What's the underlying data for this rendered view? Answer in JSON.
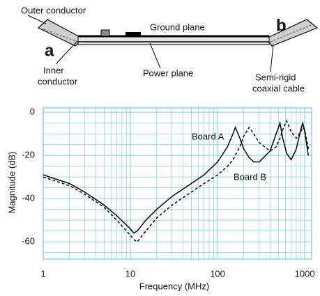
{
  "diagram": {
    "outer_conductor": "Outer conductor",
    "ground_plane": "Ground plane",
    "port_a": "a",
    "port_b": "b",
    "inner_conductor": [
      "Inner",
      "conductor"
    ],
    "power_plane": "Power plane",
    "cable": [
      "Semi-rigid",
      "coaxial cable"
    ]
  },
  "chart_data": {
    "type": "line",
    "xlabel": "Frequency (MHz)",
    "ylabel": "Magnitude (dB)",
    "xscale": "log",
    "xlim": [
      1,
      1200
    ],
    "ylim": [
      -68,
      2
    ],
    "xticks": [
      1,
      10,
      100,
      1000
    ],
    "yticks": [
      -60,
      -40,
      -20,
      0
    ],
    "xminorticks": [
      2,
      3,
      4,
      5,
      6,
      7,
      8,
      9,
      20,
      30,
      40,
      50,
      60,
      70,
      80,
      90,
      200,
      300,
      400,
      500,
      600,
      700,
      800,
      900
    ],
    "yminorticks": [
      -65,
      -55,
      -50,
      -45,
      -35,
      -30,
      -25,
      -15,
      -10,
      -5
    ],
    "grid": true,
    "grid_color": "#8fd3ea",
    "x": [
      1,
      2,
      3,
      5,
      7,
      10,
      11,
      12,
      15,
      20,
      30,
      50,
      70,
      100,
      130,
      150,
      160,
      180,
      200,
      230,
      260,
      300,
      400,
      470,
      520,
      560,
      620,
      700,
      800,
      900,
      950,
      1000,
      1100
    ],
    "series": [
      {
        "name": "Board A",
        "color": "#000000",
        "linestyle": "solid",
        "values": [
          -29,
          -33,
          -37,
          -43,
          -48,
          -54,
          -56,
          -55,
          -50,
          -45,
          -39,
          -33,
          -29,
          -23,
          -16,
          -10,
          -7,
          -12,
          -17,
          -21,
          -23,
          -23,
          -18,
          -10,
          -5,
          -12,
          -19,
          -22,
          -17,
          -8,
          -5,
          -9,
          -20
        ]
      },
      {
        "name": "Board B",
        "color": "#000000",
        "linestyle": "dashed",
        "values": [
          -30,
          -34,
          -38,
          -44,
          -50,
          -57,
          -59,
          -60,
          -55,
          -49,
          -43,
          -37,
          -33,
          -29,
          -25,
          -22,
          -20,
          -16,
          -11,
          -7,
          -10,
          -14,
          -18,
          -16,
          -12,
          -8,
          -4,
          -9,
          -12,
          -9,
          -7,
          -8,
          -17
        ]
      }
    ]
  }
}
